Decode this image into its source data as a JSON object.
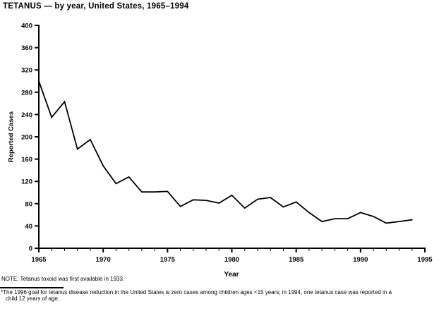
{
  "chart": {
    "title": "TETANUS — by year, United States, 1965–1994"
  },
  "chart_data": {
    "type": "line",
    "title": "TETANUS — by year, United States, 1965–1994",
    "xlabel": "Year",
    "ylabel": "Reported Cases",
    "xlim": [
      1965,
      1995
    ],
    "ylim": [
      0,
      400
    ],
    "grid": false,
    "legend": false,
    "line_color": "#000000",
    "y_ticks": [
      0,
      40,
      80,
      120,
      160,
      200,
      240,
      280,
      320,
      360,
      400
    ],
    "x_major_ticks": [
      1965,
      1970,
      1975,
      1980,
      1985,
      1990,
      1995
    ],
    "x_minor_tick_step": 1,
    "x": [
      1965,
      1966,
      1967,
      1968,
      1969,
      1970,
      1971,
      1972,
      1973,
      1974,
      1975,
      1976,
      1977,
      1978,
      1979,
      1980,
      1981,
      1982,
      1983,
      1984,
      1985,
      1986,
      1987,
      1988,
      1989,
      1990,
      1991,
      1992,
      1993,
      1994
    ],
    "values": [
      300,
      235,
      263,
      178,
      195,
      148,
      116,
      128,
      101,
      101,
      102,
      75,
      87,
      86,
      81,
      95,
      72,
      88,
      91,
      74,
      83,
      64,
      48,
      53,
      53,
      64,
      57,
      45,
      48,
      51
    ]
  },
  "notes": {
    "note": "NOTE: Tetanus toxoid was first available in 1933.",
    "footnote_marker": "*",
    "footnote_line1": "The 1996 goal for tetanus disease reduction in the United States is zero cases among children ages <15 years; in 1994, one tetanus case was reported in a",
    "footnote_line2": "child 12 years of age."
  }
}
